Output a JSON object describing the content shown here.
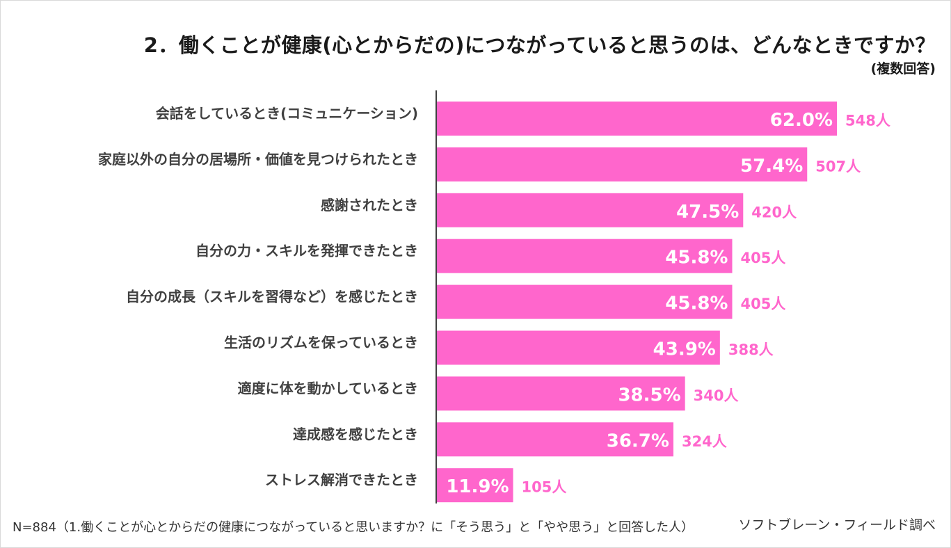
{
  "colors": {
    "bar": "#ff66cc",
    "count": "#ff66cc",
    "label": "#404040",
    "axis": "#404040"
  },
  "chart_data": {
    "type": "bar",
    "orientation": "horizontal",
    "title": "2．働くことが健康(心とからだの)につながっていると思うのは、どんなときですか？",
    "subtitle": "(複数回答)",
    "categories": [
      "会話をしているとき(コミュニケーション)",
      "家庭以外の自分の居場所・価値を見つけられたとき",
      "感謝されたとき",
      "自分の力・スキルを発揮できたとき",
      "自分の成長（スキルを習得など）を感じたとき",
      "生活のリズムを保っているとき",
      "適度に体を動かしているとき",
      "達成感を感じたとき",
      "ストレス解消できたとき"
    ],
    "values": [
      62.0,
      57.4,
      47.5,
      45.8,
      45.8,
      43.9,
      38.5,
      36.7,
      11.9
    ],
    "value_labels": [
      "62.0%",
      "57.4%",
      "47.5%",
      "45.8%",
      "45.8%",
      "43.9%",
      "38.5%",
      "36.7%",
      "11.9%"
    ],
    "counts": [
      "548人",
      "507人",
      "420人",
      "405人",
      "405人",
      "388人",
      "340人",
      "324人",
      "105人"
    ],
    "xlim": [
      0,
      62
    ],
    "unit": "%"
  },
  "footnote": "N=884（1.働くことが心とからだの健康につながっていると思いますか？に「そう思う」と「やや思う」と回答した人）",
  "credit": "ソフトブレーン・フィールド調べ"
}
